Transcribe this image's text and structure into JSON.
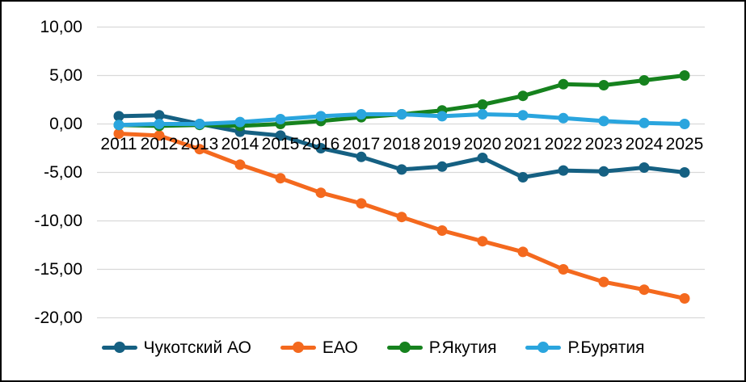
{
  "frame": {
    "background_color": "#FFFFFF",
    "border_color": "#000000"
  },
  "chart_data": {
    "type": "line",
    "title": "",
    "xlabel": "",
    "ylabel": "",
    "grid": "horizontal",
    "gridline_color": "#D9D9D9",
    "axis_text_color": "#000000",
    "legend_position": "bottom",
    "ylim": [
      -20,
      10
    ],
    "yticks": [
      {
        "value": 10,
        "label": "10,00"
      },
      {
        "value": 5,
        "label": "5,00"
      },
      {
        "value": 0,
        "label": "0,00"
      },
      {
        "value": -5,
        "label": "-5,00"
      },
      {
        "value": -10,
        "label": "-10,00"
      },
      {
        "value": -15,
        "label": "-15,00"
      },
      {
        "value": -20,
        "label": "-20,00"
      }
    ],
    "x_categories": [
      "2011",
      "2012",
      "2013",
      "2014",
      "2015",
      "2016",
      "2017",
      "2018",
      "2019",
      "2020",
      "2021",
      "2022",
      "2023",
      "2024",
      "2025"
    ],
    "series": [
      {
        "key": "chukotsky-ao",
        "name": "Чукотский АО",
        "color": "#156082",
        "values": [
          0.8,
          0.9,
          0.0,
          -0.8,
          -1.2,
          -2.5,
          -3.4,
          -4.7,
          -4.4,
          -3.5,
          -5.5,
          -4.8,
          -4.9,
          -4.5,
          -5.0
        ]
      },
      {
        "key": "eao",
        "name": "ЕАО",
        "color": "#F4691E",
        "values": [
          -1.0,
          -1.2,
          -2.6,
          -4.2,
          -5.6,
          -7.1,
          -8.2,
          -9.6,
          -11.0,
          -12.1,
          -13.2,
          -15.0,
          -16.3,
          -17.1,
          -18.0
        ]
      },
      {
        "key": "r-yakutia",
        "name": "Р.Якутия",
        "color": "#16821E",
        "values": [
          -0.1,
          -0.2,
          -0.1,
          -0.2,
          0.0,
          0.3,
          0.7,
          1.0,
          1.4,
          2.0,
          2.9,
          4.1,
          4.0,
          4.5,
          5.0
        ]
      },
      {
        "key": "r-buryatia",
        "name": "Р.Бурятия",
        "color": "#2AA5DE",
        "values": [
          -0.1,
          0.0,
          0.0,
          0.2,
          0.5,
          0.8,
          1.0,
          1.0,
          0.8,
          1.0,
          0.9,
          0.6,
          0.3,
          0.1,
          0.0
        ]
      }
    ]
  }
}
